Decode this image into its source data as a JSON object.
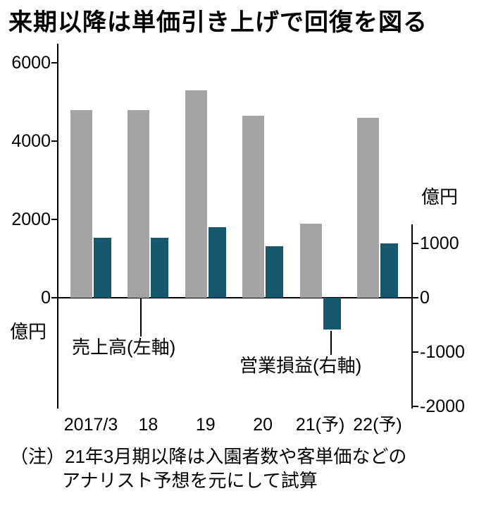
{
  "title": "来期以降は単価引き上げで回復を図る",
  "note": {
    "line1": "（注）21年3月期以降は入園者数や客単価などの",
    "line2": "アナリスト予想を元にして試算"
  },
  "chart_data": {
    "type": "bar",
    "title": "来期以降は単価引き上げで回復を図る",
    "categories": [
      "2017/3",
      "18",
      "19",
      "20",
      "21(予)",
      "22(予)"
    ],
    "series": [
      {
        "name": "売上高(左軸)",
        "axis": "left",
        "unit": "億円",
        "color": "#a4a4a4",
        "values": [
          4800,
          4800,
          5300,
          4650,
          1900,
          4600
        ]
      },
      {
        "name": "営業損益(右軸)",
        "axis": "right",
        "unit": "億円",
        "color": "#15586e",
        "values": [
          1100,
          1100,
          1300,
          950,
          -580,
          1000
        ]
      }
    ],
    "left_axis": {
      "label": "億円",
      "ticks": [
        6000,
        4000,
        2000,
        0
      ],
      "range": [
        0,
        6000
      ]
    },
    "right_axis": {
      "label": "億円",
      "ticks": [
        1000,
        0,
        -1000,
        -2000
      ],
      "range": [
        -2000,
        1000
      ]
    },
    "grid": false,
    "legend_position": "in-plot callout labels"
  }
}
